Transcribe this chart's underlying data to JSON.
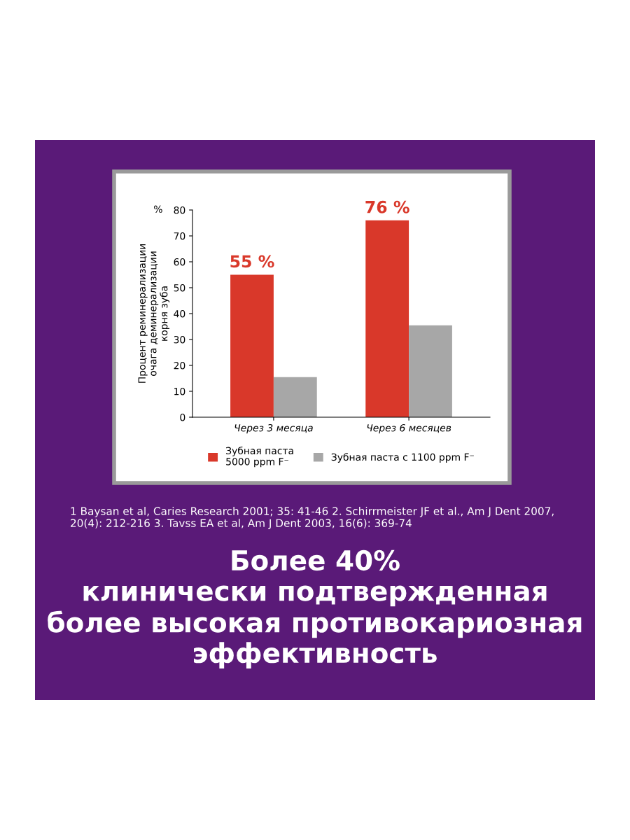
{
  "chart_data": {
    "type": "bar",
    "ylabel": "Процент реминерализации\nочага деминерализации\nкорня зуба",
    "categories": [
      "Через 3 месяца",
      "Через 6 месяцев"
    ],
    "series": [
      {
        "name": "Зубная паста\n5000 ppm F⁻",
        "color": "#d9382a",
        "values": [
          55,
          76
        ],
        "value_labels": [
          "55 %",
          "76 %"
        ]
      },
      {
        "name": "Зубная паста с 1100 ppm F⁻",
        "color": "#a7a7a7",
        "values": [
          15.5,
          35.5
        ]
      }
    ],
    "ylim": [
      0,
      80
    ],
    "yticks": [
      0,
      10,
      20,
      30,
      40,
      50,
      60,
      70,
      80
    ],
    "grid": false,
    "legend": "bottom",
    "annotations": [
      "%",
      "1 Baysan et al, Caries Research 2001; 35: 41-46 2. Schirrmeister JF et al., Am J Dent 2007,\n20(4): 212-216 3. Tavss EA et al, Am J Dent 2003, 16(6): 369-74",
      "Более 40%\nклинически подтвержденная\nболее высокая противокариозная\nэффективность"
    ]
  }
}
